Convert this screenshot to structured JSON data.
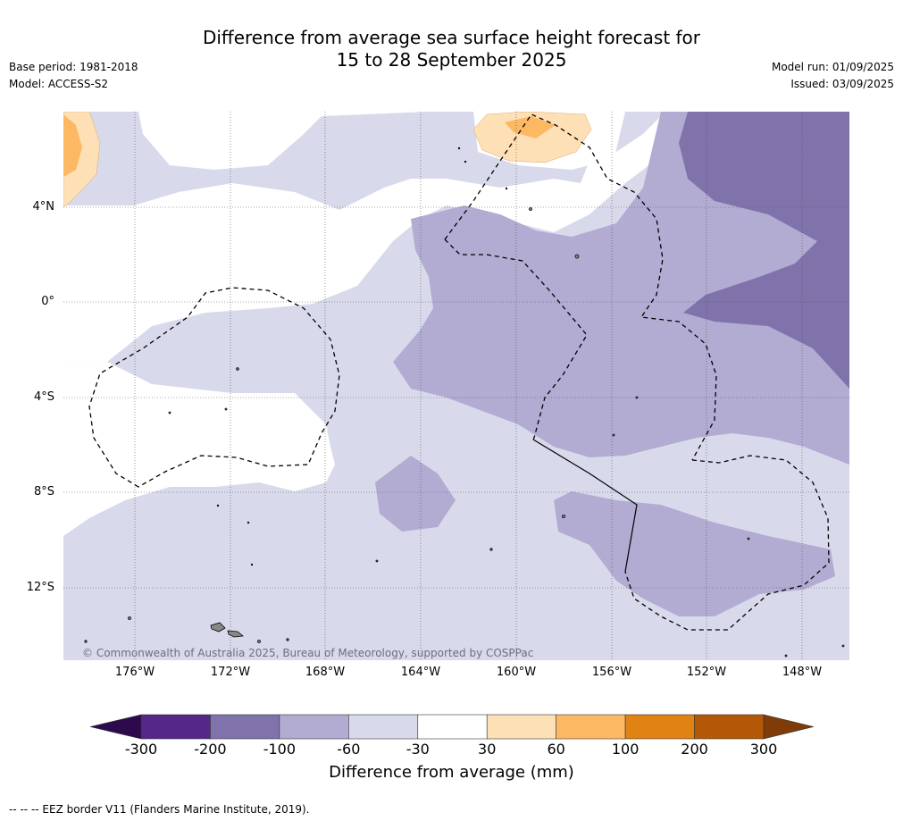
{
  "header": {
    "title_line1": "Difference from average sea surface height forecast for",
    "title_line2": "15 to 28 September 2025",
    "base_period": "Base period: 1981-2018",
    "model": "Model: ACCESS-S2",
    "model_run": "Model run: 01/09/2025",
    "issued": "Issued: 03/09/2025"
  },
  "map": {
    "lat_labels": [
      "4°N",
      "0°",
      "4°S",
      "8°S",
      "12°S"
    ],
    "lon_labels": [
      "176°W",
      "172°W",
      "168°W",
      "164°W",
      "160°W",
      "156°W",
      "152°W",
      "148°W"
    ],
    "copyright": "© Commonwealth of Australia 2025, Bureau of Meteorology, supported by COSPPac"
  },
  "colorbar": {
    "title": "Difference from average (mm)",
    "ticks": [
      "-300",
      "-200",
      "-100",
      "-60",
      "-30",
      "30",
      "60",
      "100",
      "200",
      "300"
    ],
    "colors": [
      "#2d0a4e",
      "#542788",
      "#8073ac",
      "#b2abd2",
      "#d8daeb",
      "#ffffff",
      "#fee0b6",
      "#fdb863",
      "#e08214",
      "#b35806",
      "#7f3b08"
    ]
  },
  "footnote": "--  --  -- EEZ border V11 (Flanders Marine Institute, 2019)."
}
